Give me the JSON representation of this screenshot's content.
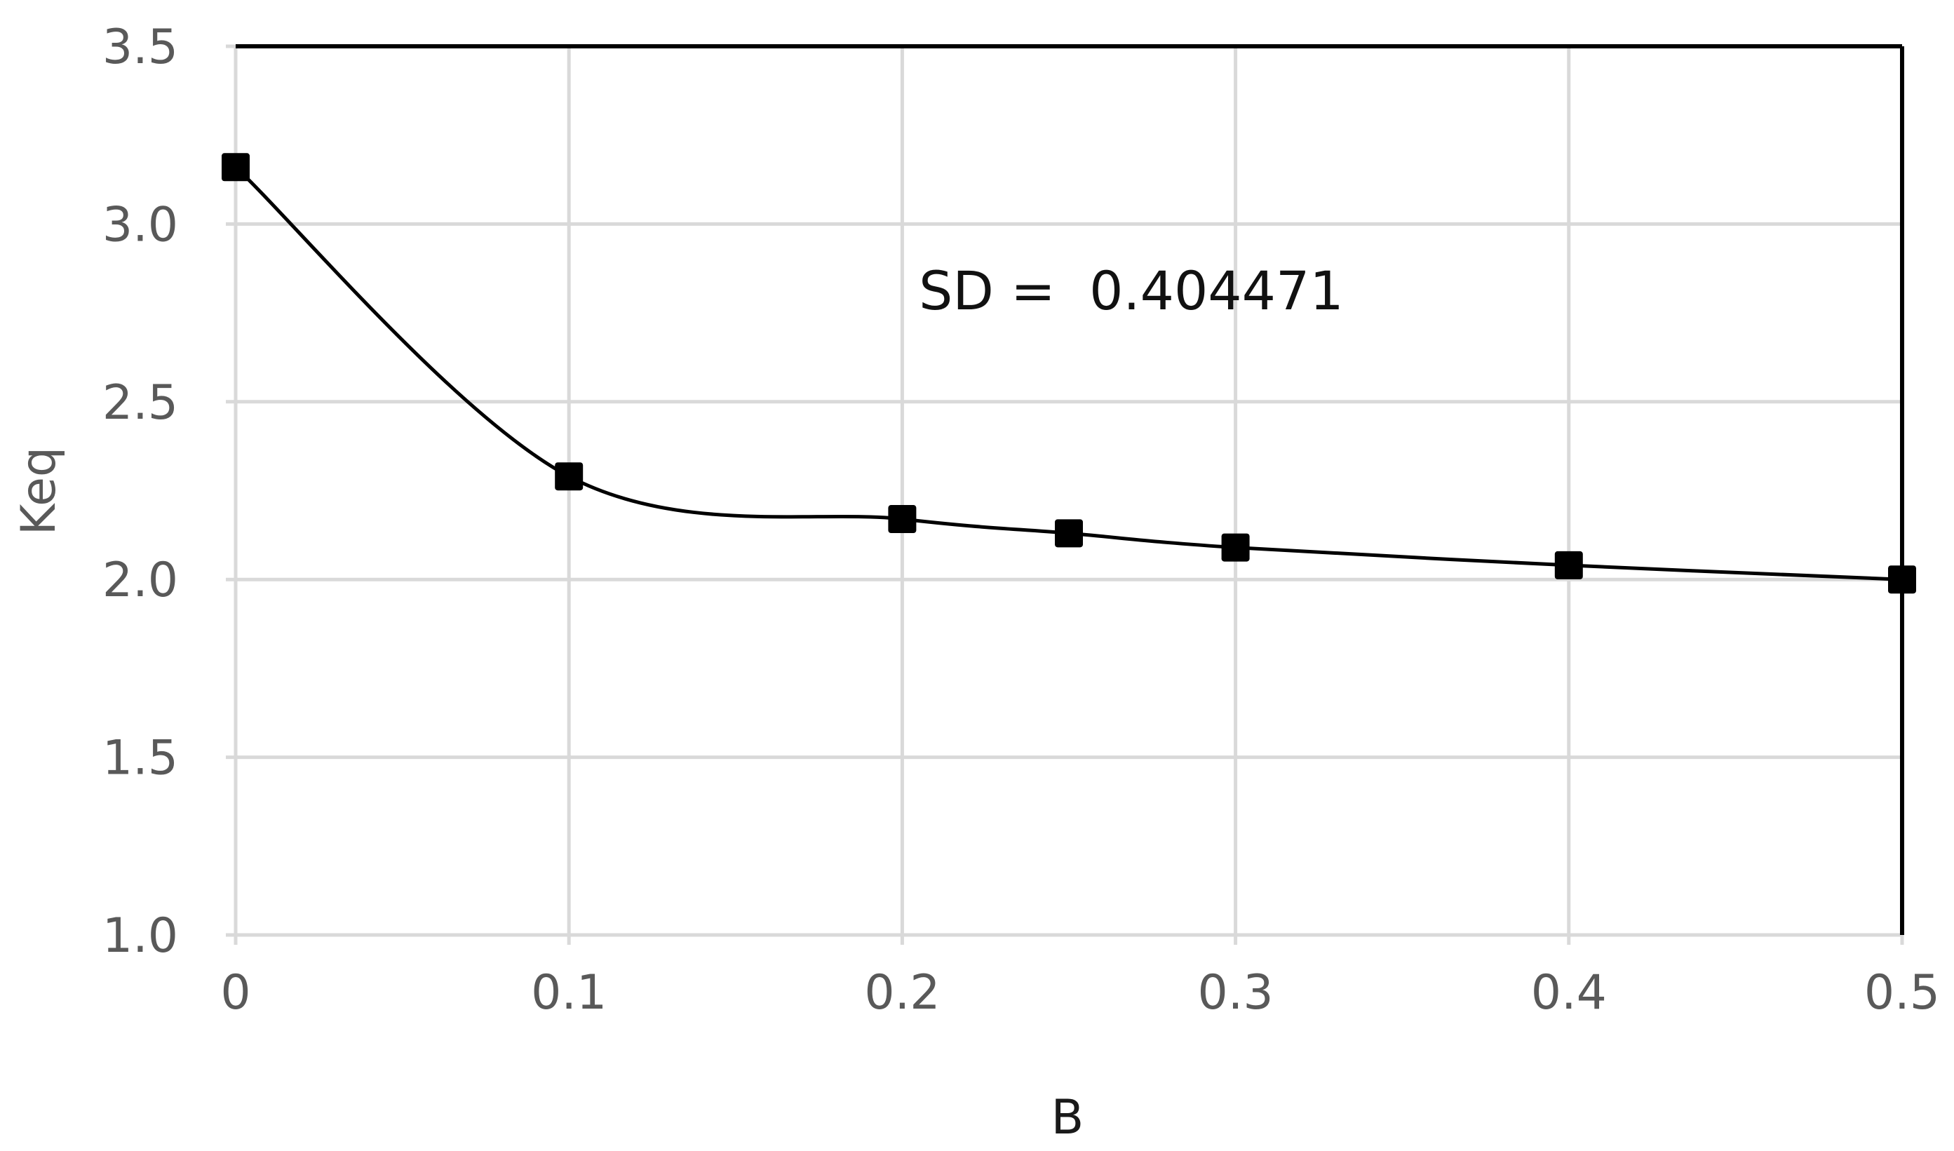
{
  "chart_data": {
    "type": "line",
    "xlabel": "B",
    "ylabel": "Keq",
    "xlim": [
      0,
      0.5
    ],
    "ylim": [
      1.0,
      3.5
    ],
    "x_ticks": [
      0,
      0.1,
      0.2,
      0.3,
      0.4,
      0.5
    ],
    "x_tick_labels": [
      "0",
      "0.1",
      "0.2",
      "0.3",
      "0.4",
      "0.5"
    ],
    "y_ticks": [
      1.0,
      1.5,
      2.0,
      2.5,
      3.0,
      3.5
    ],
    "y_tick_labels": [
      "1.0",
      "1.5",
      "2.0",
      "2.5",
      "3.0",
      "3.5"
    ],
    "grid": true,
    "smooth": true,
    "marker": "square",
    "series": [
      {
        "x": [
          0,
          0.1,
          0.2,
          0.25,
          0.3,
          0.4,
          0.5
        ],
        "y": [
          3.16,
          2.29,
          2.17,
          2.13,
          2.09,
          2.04,
          2.0
        ],
        "color": "#000000"
      }
    ],
    "annotations": [
      {
        "text": "SD =  0.404471",
        "x": 0.205,
        "y": 2.76
      }
    ]
  }
}
